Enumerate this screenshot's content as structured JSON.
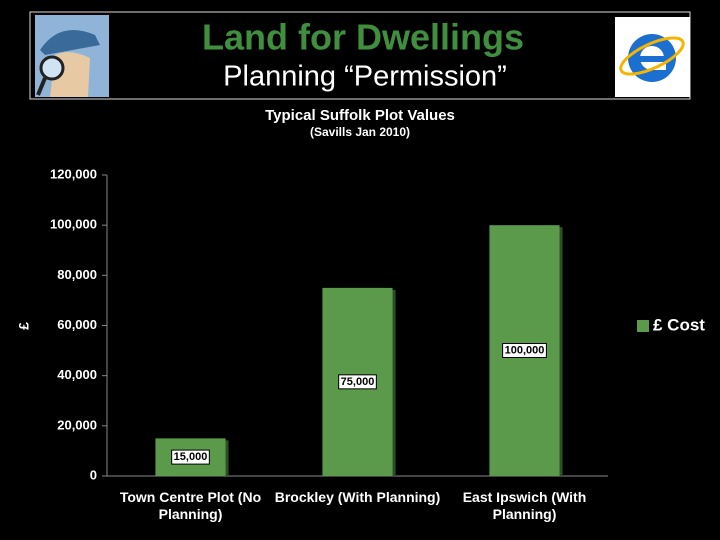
{
  "header": {
    "title": "Land for Dwellings",
    "subtitle": "Planning “Permission”"
  },
  "chart_data": {
    "type": "bar",
    "title": "Typical Suffolk Plot Values",
    "subtitle": "(Savills Jan 2010)",
    "y_label": "£",
    "categories": [
      "Town Centre Plot (No Planning)",
      "Brockley (With Planning)",
      "East Ipswich (With Planning)"
    ],
    "series": [
      {
        "name": "£ Cost",
        "color": "#5a9a4a",
        "values": [
          15000,
          75000,
          100000
        ],
        "value_labels": [
          "15,000",
          "75,000",
          "100,000"
        ]
      }
    ],
    "ylim": [
      0,
      120000
    ],
    "yticks": [
      0,
      {
        "value": 20000,
        "label": "20,000"
      },
      {
        "value": 40000,
        "label": "40,000"
      },
      {
        "value": 60000,
        "label": "60,000"
      },
      {
        "value": 80000,
        "label": "80,000"
      },
      {
        "value": 100000,
        "label": "100,000"
      },
      {
        "value": 120000,
        "label": "120,000"
      }
    ],
    "grid": false,
    "legend": "right"
  }
}
